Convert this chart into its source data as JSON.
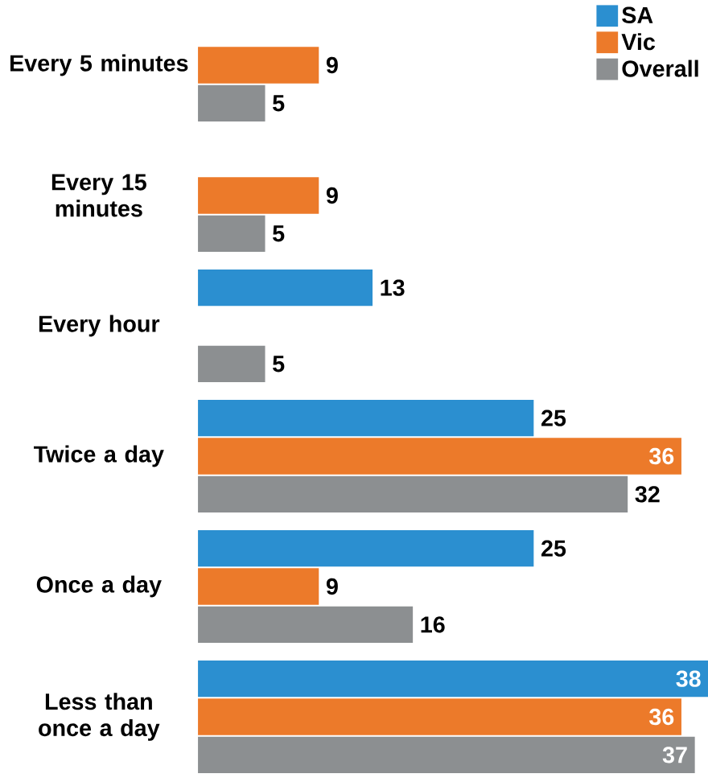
{
  "chart_data": {
    "type": "bar",
    "orientation": "horizontal",
    "categories": [
      "Every 5 minutes",
      "Every 15 minutes",
      "Every hour",
      "Twice a day",
      "Once a day",
      "Less than once a day"
    ],
    "series": [
      {
        "name": "SA",
        "color": "#2b8fd0",
        "values": [
          null,
          null,
          13,
          25,
          25,
          38
        ]
      },
      {
        "name": "Vic",
        "color": "#ec7a2a",
        "values": [
          9,
          9,
          null,
          36,
          9,
          36
        ]
      },
      {
        "name": "Overall",
        "color": "#8c8f91",
        "values": [
          5,
          5,
          5,
          32,
          16,
          37
        ]
      }
    ],
    "data_labels": true,
    "legend": "top right"
  }
}
